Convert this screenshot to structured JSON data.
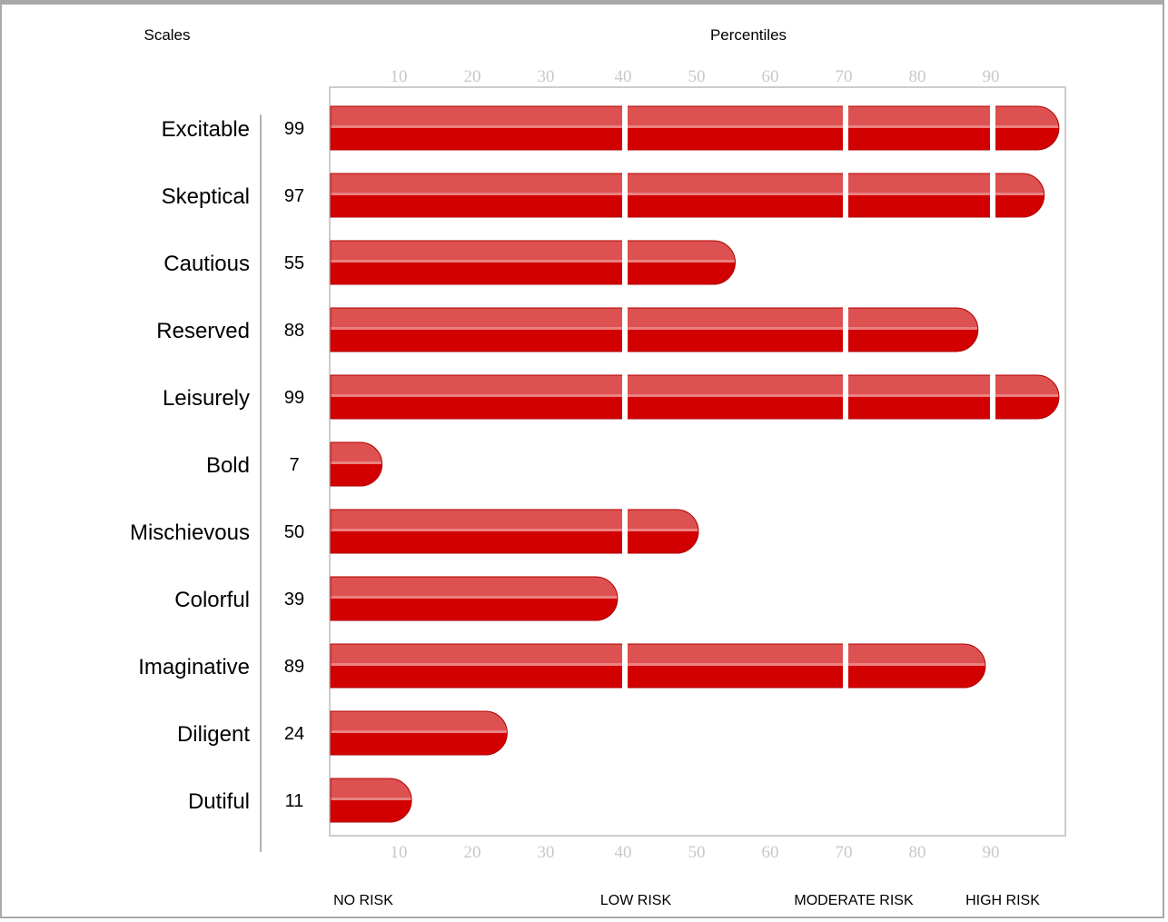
{
  "chart_data": {
    "type": "bar",
    "orientation": "horizontal",
    "title_left": "Scales",
    "title_center": "Percentiles",
    "xlim": [
      0,
      100
    ],
    "ticks": [
      10,
      20,
      30,
      40,
      50,
      60,
      70,
      80,
      90
    ],
    "segment_breaks": [
      40,
      70,
      90
    ],
    "zones": [
      "NO RISK",
      "LOW RISK",
      "MODERATE RISK",
      "HIGH RISK"
    ],
    "categories": [
      "Excitable",
      "Skeptical",
      "Cautious",
      "Reserved",
      "Leisurely",
      "Bold",
      "Mischievous",
      "Colorful",
      "Imaginative",
      "Diligent",
      "Dutiful"
    ],
    "values": [
      99,
      97,
      55,
      88,
      99,
      7,
      50,
      39,
      89,
      24,
      11
    ],
    "colors": {
      "bar_top": "#de5151",
      "bar_bottom": "#d20000",
      "highlight": "#ee8d8d",
      "frame": "#cccccc",
      "tick": "#c8c8c8"
    }
  }
}
